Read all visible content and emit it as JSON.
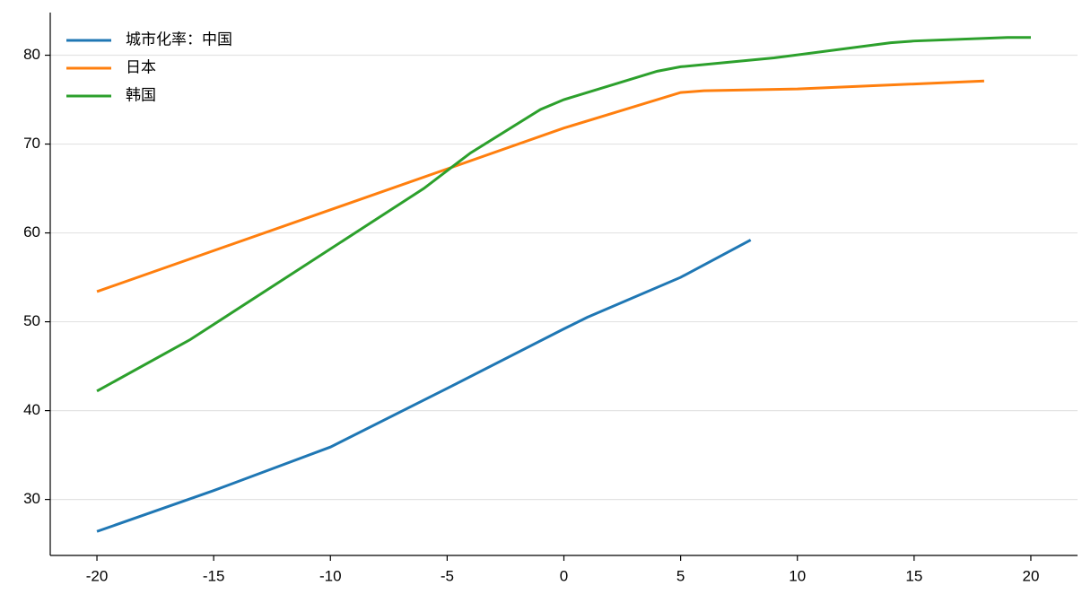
{
  "chart_data": {
    "type": "line",
    "series": [
      {
        "name": "城市化率：中国",
        "color": "#1f77b4",
        "x": [
          -20,
          -15,
          -10,
          -5,
          0,
          1,
          5,
          8
        ],
        "values": [
          26.4,
          31.0,
          35.9,
          42.5,
          49.2,
          50.5,
          55.0,
          59.2
        ]
      },
      {
        "name": "日本",
        "color": "#ff7f0e",
        "x": [
          -20,
          0,
          5,
          6,
          10,
          18
        ],
        "values": [
          53.4,
          71.8,
          75.8,
          76.0,
          76.2,
          77.1
        ]
      },
      {
        "name": "韩国",
        "color": "#2ca02c",
        "x": [
          -20,
          -16,
          -11,
          -6,
          -4,
          -1,
          0,
          4,
          5,
          9,
          14,
          15,
          19,
          20
        ],
        "values": [
          42.2,
          48.0,
          56.5,
          65.0,
          69.0,
          73.9,
          75.0,
          78.2,
          78.7,
          79.7,
          81.4,
          81.6,
          82.0,
          82.0
        ]
      }
    ],
    "xlim": [
      -22,
      22
    ],
    "xticks": [
      -20,
      -15,
      -10,
      -5,
      0,
      5,
      10,
      15,
      20
    ],
    "ylim": [
      23.7,
      84.8
    ],
    "yticks": [
      30,
      40,
      50,
      60,
      70,
      80
    ],
    "grid": true,
    "legend": "upper-left"
  }
}
